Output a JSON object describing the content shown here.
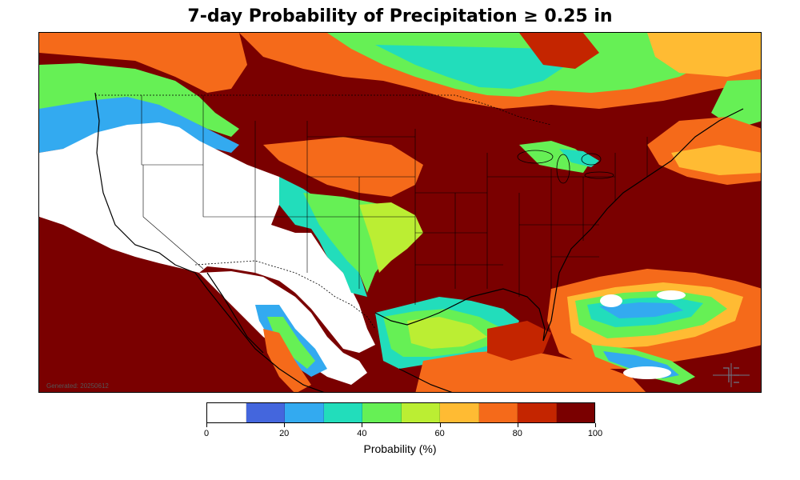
{
  "title": "7-day Probability of Precipitation ≥ 0.25 in",
  "generated": "Generated: 20250612",
  "colorbar": {
    "label": "Probability (%)",
    "ticks": [
      "0",
      "20",
      "40",
      "60",
      "80",
      "100"
    ],
    "bins": [
      {
        "range": "0-10",
        "color": "#ffffff"
      },
      {
        "range": "10-20",
        "color": "#4466dd"
      },
      {
        "range": "20-30",
        "color": "#33aaf0"
      },
      {
        "range": "30-40",
        "color": "#22ddbb"
      },
      {
        "range": "40-50",
        "color": "#66f055"
      },
      {
        "range": "50-60",
        "color": "#bbee33"
      },
      {
        "range": "60-70",
        "color": "#ffbb33"
      },
      {
        "range": "70-80",
        "color": "#f56a1a"
      },
      {
        "range": "80-90",
        "color": "#c42500"
      },
      {
        "range": "90-100",
        "color": "#7a0000"
      }
    ]
  },
  "map": {
    "region": "Contiguous United States, southern Canada, Mexico, Gulf of Mexico, Caribbean",
    "colors": {
      "dry": "#ffffff",
      "very_high": "#7a0000",
      "high": "#c42500",
      "mid_high": "#f56a1a",
      "mid": "#ffbb33",
      "mid_low": "#bbee33",
      "low": "#66f055",
      "lower": "#22ddbb",
      "lowest": "#33aaf0",
      "minimal": "#4466dd"
    },
    "logo_icon": "noaa-logo-icon"
  }
}
